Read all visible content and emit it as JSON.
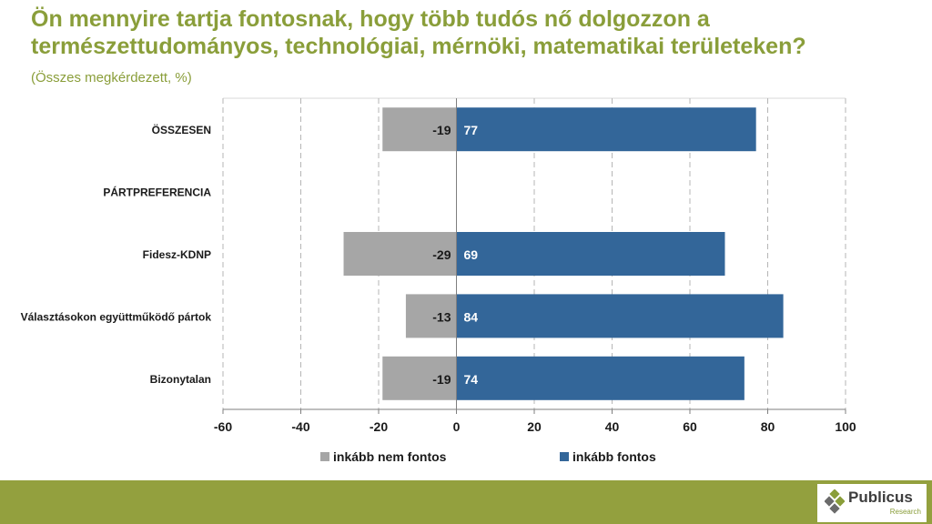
{
  "header": {
    "title": "Ön mennyire tartja fontosnak, hogy több tudós nő dolgozzon a természettudományos, technológiai, mérnöki, matematikai területeken?",
    "subtitle": "(Összes megkérdezett, %)"
  },
  "logo": {
    "name": "Publicus",
    "sub": "Research"
  },
  "colors": {
    "title": "#8a9e3a",
    "negative_bar": "#a6a6a6",
    "positive_bar": "#336699",
    "footer": "#93a03e"
  },
  "chart_data": {
    "type": "bar",
    "orientation": "horizontal",
    "stacked": "diverging",
    "categories": [
      "ÖSSZESEN",
      "PÁRTPREFERENCIA",
      "Fidesz-KDNP",
      "Választásokon együttműködő pártok",
      "Bizonytalan"
    ],
    "series": [
      {
        "name": "inkább nem fontos",
        "values": [
          -19,
          null,
          -29,
          -13,
          -19
        ]
      },
      {
        "name": "inkább fontos",
        "values": [
          77,
          null,
          69,
          84,
          74
        ]
      }
    ],
    "xlim": [
      -60,
      100
    ],
    "xticks": [
      -60,
      -40,
      -20,
      0,
      20,
      40,
      60,
      80,
      100
    ],
    "grid": "vertical-dashed",
    "legend": "bottom-center"
  }
}
